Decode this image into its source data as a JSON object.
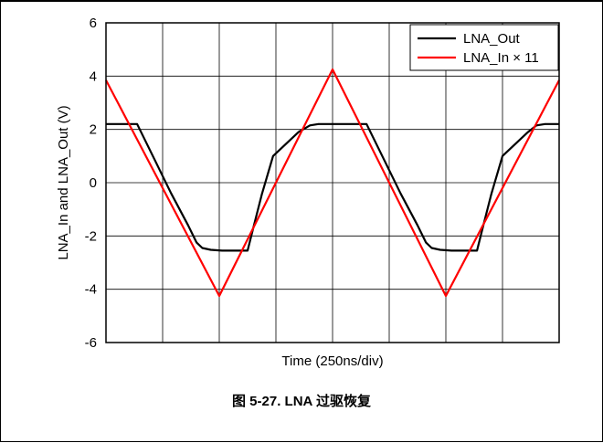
{
  "caption": "图 5-27. LNA 过驱恢复",
  "chart_data": {
    "type": "line",
    "title": "",
    "xlabel": "Time (250ns/div)",
    "ylabel": "LNA_In and LNA_Out (V)",
    "xlim": [
      0,
      8
    ],
    "ylim": [
      -6,
      6
    ],
    "yticks": [
      "6",
      "4",
      "2",
      "0",
      "-2",
      "-4",
      "-6"
    ],
    "ytick_values": [
      6,
      4,
      2,
      0,
      -2,
      -4,
      -6
    ],
    "x_divisions": 8,
    "grid": true,
    "legend_position": "top-right",
    "series": [
      {
        "name": "LNA_Out",
        "color": "#000000",
        "x": [
          0,
          0.55,
          0.85,
          1.15,
          1.45,
          1.6,
          1.7,
          1.85,
          2.05,
          2.5,
          2.6,
          2.75,
          2.95,
          3.4,
          3.6,
          3.75,
          3.9,
          4.1,
          4.6,
          4.9,
          5.2,
          5.5,
          5.65,
          5.75,
          5.9,
          6.1,
          6.55,
          6.65,
          6.8,
          7.0,
          7.45,
          7.6,
          7.75,
          8.0
        ],
        "y": [
          2.2,
          2.2,
          0.9,
          -0.4,
          -1.6,
          -2.25,
          -2.45,
          -2.52,
          -2.55,
          -2.55,
          -1.7,
          -0.45,
          1.0,
          1.9,
          2.15,
          2.2,
          2.2,
          2.2,
          2.2,
          0.9,
          -0.4,
          -1.6,
          -2.25,
          -2.45,
          -2.52,
          -2.55,
          -2.55,
          -1.7,
          -0.45,
          1.0,
          1.9,
          2.15,
          2.2,
          2.2
        ]
      },
      {
        "name": "LNA_In × 11",
        "color": "#ff0000",
        "x": [
          0,
          2.0,
          4.0,
          6.0,
          8.0
        ],
        "y": [
          3.85,
          -4.25,
          4.25,
          -4.25,
          3.85
        ]
      }
    ]
  }
}
